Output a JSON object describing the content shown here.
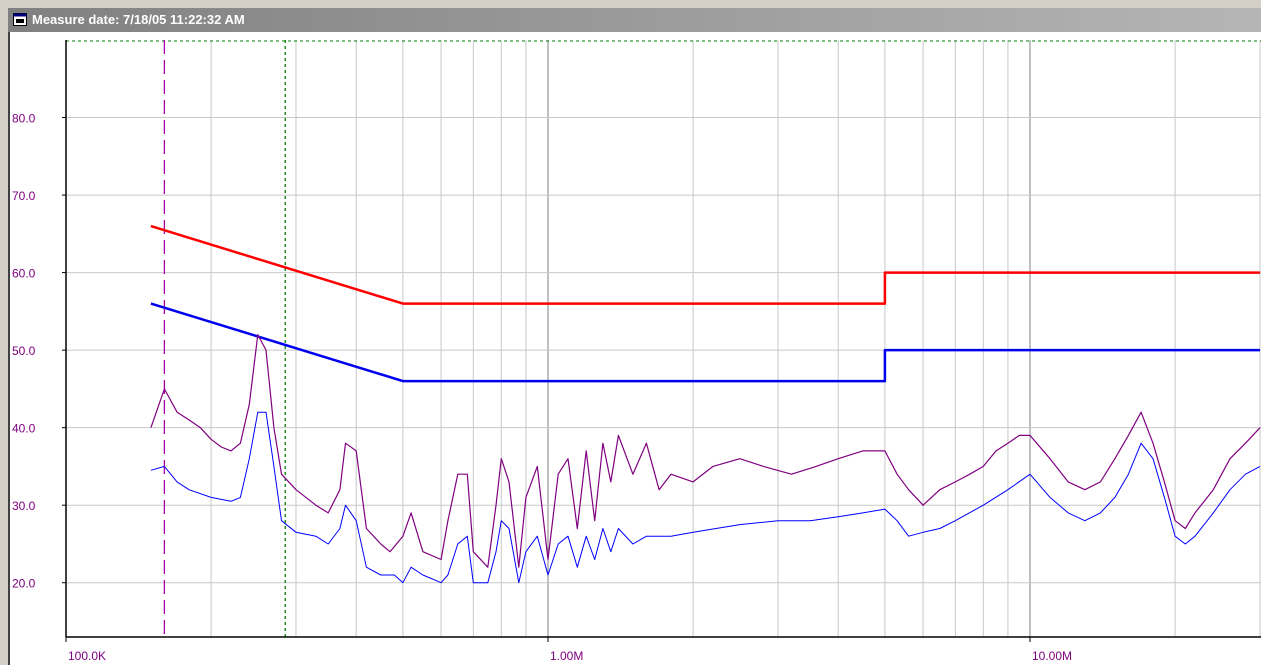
{
  "window": {
    "title": "Measure date: 7/18/05 11:22:32 AM",
    "icon": "window-app-icon"
  },
  "chart_data": {
    "type": "line",
    "xscale": "log",
    "xlim": [
      100000,
      30000000
    ],
    "ylim": [
      13,
      90
    ],
    "grid": true,
    "legend": "none",
    "x_tick_labels": [
      {
        "value": 100000,
        "label": "100.0K"
      },
      {
        "value": 1000000,
        "label": "1.00M"
      },
      {
        "value": 10000000,
        "label": "10.00M"
      }
    ],
    "y_tick_labels": [
      {
        "value": 20,
        "label": "20.0"
      },
      {
        "value": 30,
        "label": "30.0"
      },
      {
        "value": 40,
        "label": "40.0"
      },
      {
        "value": 50,
        "label": "50.0"
      },
      {
        "value": 60,
        "label": "60.0"
      },
      {
        "value": 70,
        "label": "70.0"
      },
      {
        "value": 80,
        "label": "80.0"
      }
    ],
    "markers": [
      {
        "x": 160000,
        "color": "#aa00aa",
        "style": "dashed"
      },
      {
        "x": 285000,
        "color": "#008000",
        "style": "dotted"
      }
    ],
    "series": [
      {
        "color": "#ff0000",
        "stroke": 2.5,
        "points": [
          [
            150000,
            66
          ],
          [
            500000,
            56
          ],
          [
            5000000,
            56
          ],
          [
            5000000,
            60
          ],
          [
            30000000,
            60
          ]
        ]
      },
      {
        "color": "#0000ee",
        "stroke": 2.5,
        "points": [
          [
            150000,
            56
          ],
          [
            500000,
            46
          ],
          [
            5000000,
            46
          ],
          [
            5000000,
            50
          ],
          [
            30000000,
            50
          ]
        ]
      },
      {
        "color": "#800080",
        "stroke": 1.2,
        "points": [
          [
            150000,
            40
          ],
          [
            160000,
            45
          ],
          [
            170000,
            42
          ],
          [
            180000,
            41
          ],
          [
            190000,
            40
          ],
          [
            200000,
            38.5
          ],
          [
            210000,
            37.5
          ],
          [
            220000,
            37
          ],
          [
            230000,
            38
          ],
          [
            240000,
            43
          ],
          [
            250000,
            52
          ],
          [
            260000,
            50
          ],
          [
            270000,
            40
          ],
          [
            280000,
            34
          ],
          [
            300000,
            32
          ],
          [
            330000,
            30
          ],
          [
            350000,
            29
          ],
          [
            370000,
            32
          ],
          [
            380000,
            38
          ],
          [
            400000,
            37
          ],
          [
            420000,
            27
          ],
          [
            450000,
            25
          ],
          [
            470000,
            24
          ],
          [
            500000,
            26
          ],
          [
            520000,
            29
          ],
          [
            550000,
            24
          ],
          [
            600000,
            23
          ],
          [
            620000,
            28
          ],
          [
            650000,
            34
          ],
          [
            680000,
            34
          ],
          [
            700000,
            24
          ],
          [
            750000,
            22
          ],
          [
            780000,
            30
          ],
          [
            800000,
            36
          ],
          [
            830000,
            33
          ],
          [
            870000,
            22
          ],
          [
            900000,
            31
          ],
          [
            950000,
            35
          ],
          [
            1000000,
            23
          ],
          [
            1050000,
            34
          ],
          [
            1100000,
            36
          ],
          [
            1150000,
            27
          ],
          [
            1200000,
            37
          ],
          [
            1250000,
            28
          ],
          [
            1300000,
            38
          ],
          [
            1350000,
            33
          ],
          [
            1400000,
            39
          ],
          [
            1500000,
            34
          ],
          [
            1600000,
            38
          ],
          [
            1700000,
            32
          ],
          [
            1800000,
            34
          ],
          [
            2000000,
            33
          ],
          [
            2200000,
            35
          ],
          [
            2500000,
            36
          ],
          [
            2800000,
            35
          ],
          [
            3200000,
            34
          ],
          [
            3600000,
            35
          ],
          [
            4000000,
            36
          ],
          [
            4500000,
            37
          ],
          [
            5000000,
            37
          ],
          [
            5300000,
            34
          ],
          [
            5600000,
            32
          ],
          [
            6000000,
            30
          ],
          [
            6500000,
            32
          ],
          [
            7000000,
            33
          ],
          [
            7500000,
            34
          ],
          [
            8000000,
            35
          ],
          [
            8500000,
            37
          ],
          [
            9000000,
            38
          ],
          [
            9500000,
            39
          ],
          [
            10000000,
            39
          ],
          [
            11000000,
            36
          ],
          [
            12000000,
            33
          ],
          [
            13000000,
            32
          ],
          [
            14000000,
            33
          ],
          [
            15000000,
            36
          ],
          [
            16000000,
            39
          ],
          [
            17000000,
            42
          ],
          [
            18000000,
            38
          ],
          [
            19000000,
            33
          ],
          [
            20000000,
            28
          ],
          [
            21000000,
            27
          ],
          [
            22000000,
            29
          ],
          [
            24000000,
            32
          ],
          [
            26000000,
            36
          ],
          [
            28000000,
            38
          ],
          [
            30000000,
            40
          ]
        ]
      },
      {
        "color": "#0000ff",
        "stroke": 1,
        "points": [
          [
            150000,
            34.5
          ],
          [
            160000,
            35
          ],
          [
            170000,
            33
          ],
          [
            180000,
            32
          ],
          [
            200000,
            31
          ],
          [
            220000,
            30.5
          ],
          [
            230000,
            31
          ],
          [
            240000,
            36
          ],
          [
            250000,
            42
          ],
          [
            260000,
            42
          ],
          [
            270000,
            35
          ],
          [
            280000,
            28
          ],
          [
            300000,
            26.5
          ],
          [
            330000,
            26
          ],
          [
            350000,
            25
          ],
          [
            370000,
            27
          ],
          [
            380000,
            30
          ],
          [
            400000,
            28
          ],
          [
            420000,
            22
          ],
          [
            450000,
            21
          ],
          [
            480000,
            21
          ],
          [
            500000,
            20
          ],
          [
            520000,
            22
          ],
          [
            550000,
            21
          ],
          [
            600000,
            20
          ],
          [
            620000,
            21
          ],
          [
            650000,
            25
          ],
          [
            680000,
            26
          ],
          [
            700000,
            20
          ],
          [
            750000,
            20
          ],
          [
            780000,
            24
          ],
          [
            800000,
            28
          ],
          [
            830000,
            27
          ],
          [
            870000,
            20
          ],
          [
            900000,
            24
          ],
          [
            950000,
            26
          ],
          [
            1000000,
            21
          ],
          [
            1050000,
            25
          ],
          [
            1100000,
            26
          ],
          [
            1150000,
            22
          ],
          [
            1200000,
            26
          ],
          [
            1250000,
            23
          ],
          [
            1300000,
            27
          ],
          [
            1350000,
            24
          ],
          [
            1400000,
            27
          ],
          [
            1500000,
            25
          ],
          [
            1600000,
            26
          ],
          [
            1800000,
            26
          ],
          [
            2000000,
            26.5
          ],
          [
            2500000,
            27.5
          ],
          [
            3000000,
            28
          ],
          [
            3500000,
            28
          ],
          [
            4000000,
            28.5
          ],
          [
            4500000,
            29
          ],
          [
            5000000,
            29.5
          ],
          [
            5300000,
            28
          ],
          [
            5600000,
            26
          ],
          [
            6000000,
            26.5
          ],
          [
            6500000,
            27
          ],
          [
            7000000,
            28
          ],
          [
            8000000,
            30
          ],
          [
            9000000,
            32
          ],
          [
            10000000,
            34
          ],
          [
            11000000,
            31
          ],
          [
            12000000,
            29
          ],
          [
            13000000,
            28
          ],
          [
            14000000,
            29
          ],
          [
            15000000,
            31
          ],
          [
            16000000,
            34
          ],
          [
            17000000,
            38
          ],
          [
            18000000,
            36
          ],
          [
            19000000,
            31
          ],
          [
            20000000,
            26
          ],
          [
            21000000,
            25
          ],
          [
            22000000,
            26
          ],
          [
            24000000,
            29
          ],
          [
            26000000,
            32
          ],
          [
            28000000,
            34
          ],
          [
            30000000,
            35
          ]
        ]
      }
    ]
  }
}
